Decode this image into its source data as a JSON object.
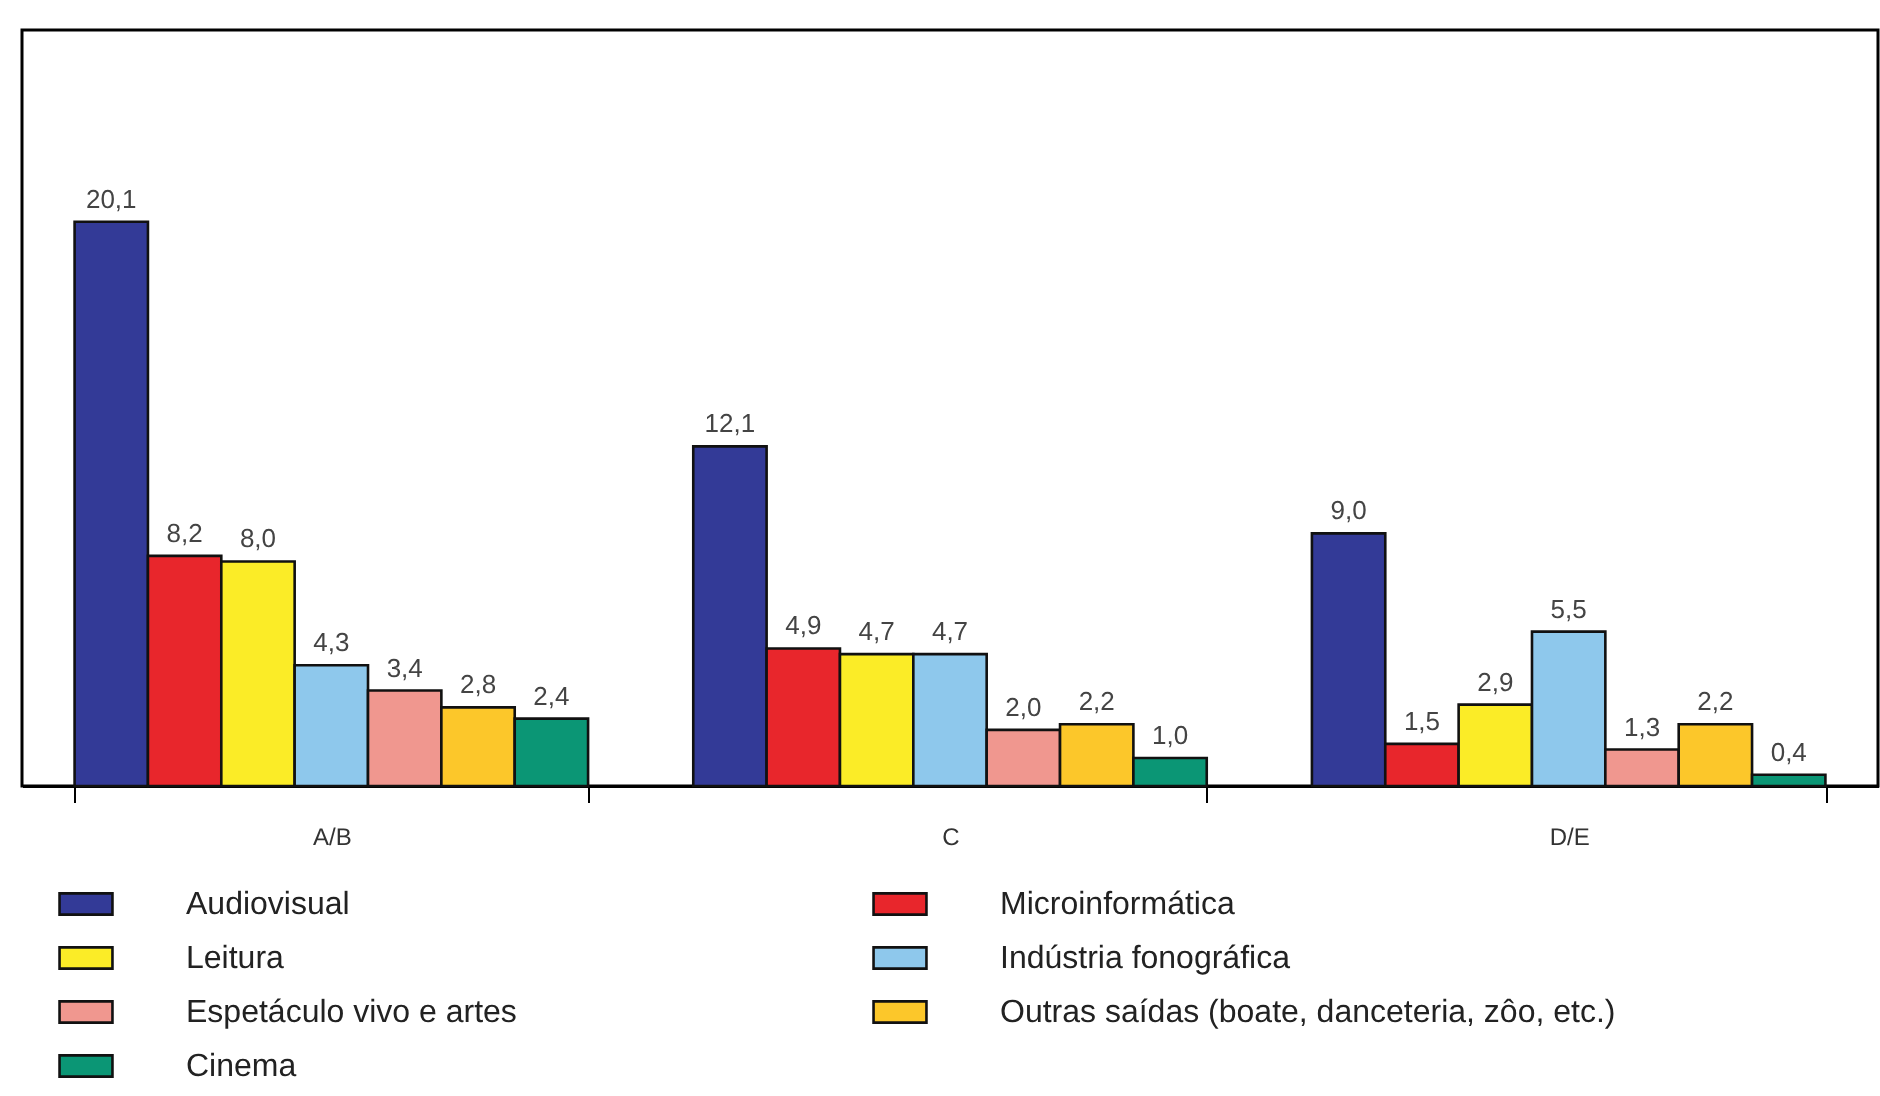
{
  "chart_data": {
    "type": "bar",
    "categories": [
      "A/B",
      "C",
      "D/E"
    ],
    "legend": "bottom",
    "series": [
      {
        "name": "Audiovisual",
        "color": "#333a97",
        "values": [
          20.1,
          12.1,
          9.0
        ],
        "value_labels": [
          "20,1",
          "12,1",
          "9,0"
        ]
      },
      {
        "name": "Microinformática",
        "color": "#e8262c",
        "values": [
          8.2,
          4.9,
          1.5
        ],
        "value_labels": [
          "8,2",
          "4,9",
          "1,5"
        ]
      },
      {
        "name": "Leitura",
        "color": "#fbec27",
        "values": [
          8.0,
          4.7,
          2.9
        ],
        "value_labels": [
          "8,0",
          "4,7",
          "2,9"
        ]
      },
      {
        "name": "Indústria fonográfica",
        "color": "#8ec8ec",
        "values": [
          4.3,
          4.7,
          5.5
        ],
        "value_labels": [
          "4,3",
          "4,7",
          "5,5"
        ]
      },
      {
        "name": "Espetáculo vivo e artes",
        "color": "#f0978f",
        "values": [
          3.4,
          2.0,
          1.3
        ],
        "value_labels": [
          "3,4",
          "2,0",
          "1,3"
        ]
      },
      {
        "name": "Outras saídas (boate, danceteria, zôo, etc.)",
        "color": "#fcc72a",
        "values": [
          2.8,
          2.2,
          2.2
        ],
        "value_labels": [
          "2,8",
          "2,2",
          "2,2"
        ]
      },
      {
        "name": "Cinema",
        "color": "#0b9675",
        "values": [
          2.4,
          1.0,
          0.4
        ],
        "value_labels": [
          "2,4",
          "1,0",
          "0,4"
        ]
      }
    ]
  }
}
